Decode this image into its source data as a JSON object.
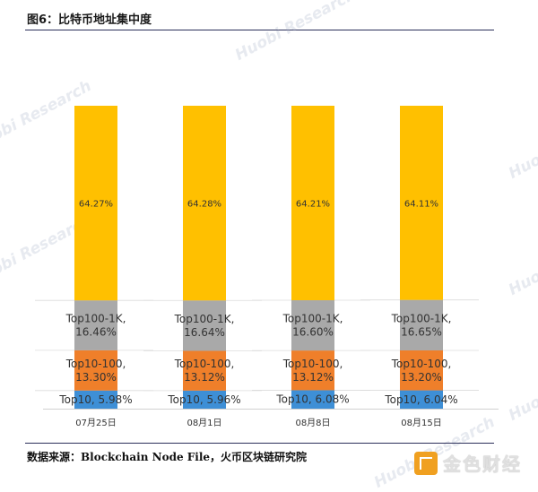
{
  "header": {
    "title": "图6：比特币地址集中度"
  },
  "footer": {
    "source": "数据来源：Blockchain Node File，火币区块链研究院",
    "brand_name": "金色财经"
  },
  "watermark_text": "Huobi Research",
  "chart_data": {
    "type": "bar",
    "stacked": true,
    "normalized": true,
    "categories": [
      "07月25日",
      "08月1日",
      "08月8日",
      "08月15日"
    ],
    "series": [
      {
        "name": "Top10",
        "values": [
          5.98,
          5.96,
          6.08,
          6.04
        ],
        "color": "#3e8fd6",
        "labels": [
          "Top10, 5.98%",
          "Top10, 5.96%",
          "Top10, 6.08%",
          "Top10, 6.04%"
        ]
      },
      {
        "name": "Top10-100",
        "values": [
          13.3,
          13.12,
          13.12,
          13.2
        ],
        "color": "#ef7f2a",
        "labels": [
          "Top10-100,\n13.30%",
          "Top10-100,\n13.12%",
          "Top10-100,\n13.12%",
          "Top10-100,\n13.20%"
        ]
      },
      {
        "name": "Top100-1K",
        "values": [
          16.46,
          16.64,
          16.6,
          16.65
        ],
        "color": "#a9a9a9",
        "labels": [
          "Top100-1K,\n16.46%",
          "Top100-1K,\n16.64%",
          "Top100-1K,\n16.60%",
          "Top100-1K,\n16.65%"
        ]
      },
      {
        "name": "",
        "values": [
          64.27,
          64.28,
          64.21,
          64.11
        ],
        "color": "#ffc000",
        "labels": [
          "64.27%",
          "64.28%",
          "64.21%",
          "64.11%"
        ]
      }
    ],
    "ylim": [
      0,
      100
    ],
    "grid": false,
    "legend": "none"
  }
}
